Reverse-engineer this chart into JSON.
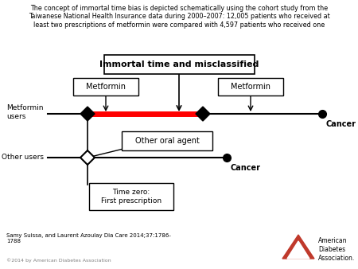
{
  "title_text": "The concept of immortal time bias is depicted schematically using the cohort study from the\nTaiwanese National Health Insurance data during 2000–2007: 12,005 patients who received at\nleast two prescriptions of metformin were compared with 4,597 patients who received one",
  "immortal_label": "Immortal time and misclassified",
  "metformin_box1_label": "Metformin",
  "metformin_box2_label": "Metformin",
  "other_oral_agent_label": "Other oral agent",
  "time_zero_label": "Time zero:\nFirst prescription",
  "metformin_users_label": "Metformin\nusers",
  "other_users_label": "Other users",
  "cancer_upper_label": "Cancer",
  "cancer_lower_label": "Cancer",
  "citation_label": "Samy Suissa, and Laurent Azoulay Dia Care 2014;37:1786-\n1788",
  "copyright_label": "©2014 by American Diabetes Association",
  "bg_color": "#ffffff",
  "line_color": "#000000",
  "red_color": "#ff0000",
  "figsize": [
    4.5,
    3.38
  ],
  "dpi": 100
}
